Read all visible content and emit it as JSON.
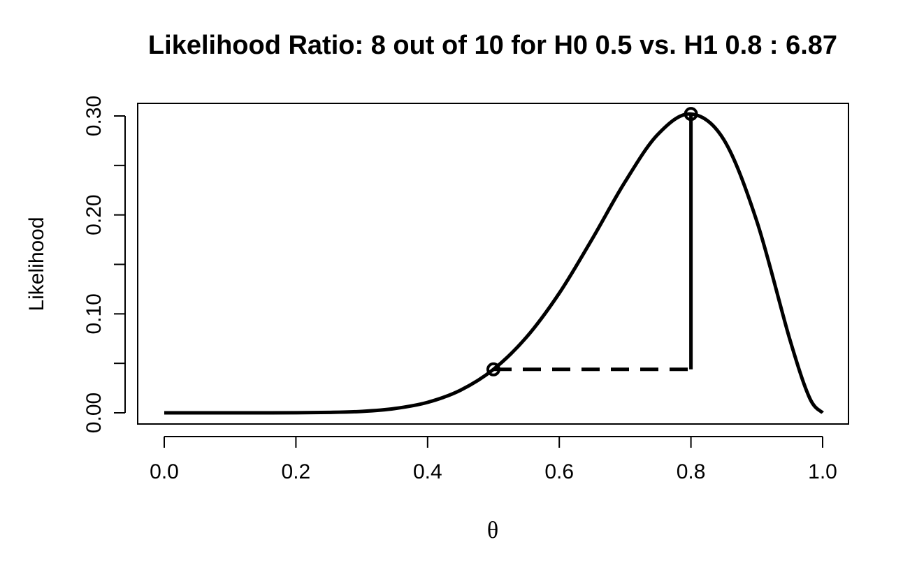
{
  "chart_data": {
    "type": "line",
    "title": "Likelihood Ratio: 8 out of 10 for H0 0.5 vs. H1 0.8 : 6.87",
    "xlabel": "θ",
    "ylabel": "Likelihood",
    "xlim": [
      0,
      1
    ],
    "ylim": [
      0,
      0.3
    ],
    "x_ticks": [
      "0.0",
      "0.2",
      "0.4",
      "0.6",
      "0.8",
      "1.0"
    ],
    "y_ticks": [
      "0.00",
      "0.10",
      "0.20",
      "0.30"
    ],
    "x_tick_values": [
      0,
      0.2,
      0.4,
      0.6,
      0.8,
      1.0
    ],
    "y_tick_values": [
      0,
      0.05,
      0.1,
      0.15,
      0.2,
      0.25,
      0.3
    ],
    "y_labeled_values": [
      0,
      0.1,
      0.2,
      0.3
    ],
    "series": [
      {
        "x": [
          0.0,
          0.05,
          0.1,
          0.15,
          0.2,
          0.25,
          0.3,
          0.35,
          0.4,
          0.45,
          0.5,
          0.55,
          0.6,
          0.65,
          0.7,
          0.75,
          0.8,
          0.85,
          0.9,
          0.95,
          0.98,
          1.0
        ],
        "y": [
          0.0,
          0.0,
          0.0,
          0.0,
          0.0001,
          0.0004,
          0.0014,
          0.0043,
          0.0106,
          0.0229,
          0.0439,
          0.0763,
          0.1209,
          0.1757,
          0.2335,
          0.2816,
          0.302,
          0.2759,
          0.1937,
          0.0746,
          0.0153,
          0.0
        ]
      }
    ],
    "points": [
      {
        "x": 0.5,
        "y": 0.0439
      },
      {
        "x": 0.8,
        "y": 0.302
      }
    ],
    "guides": {
      "horizontal_dashed": {
        "x_from": 0.5,
        "x_to": 0.8,
        "y": 0.0439
      },
      "vertical_solid": {
        "x": 0.8,
        "y_from": 0.0439,
        "y_to": 0.302
      }
    },
    "grid": false,
    "legend": "none",
    "color": "#000000"
  }
}
